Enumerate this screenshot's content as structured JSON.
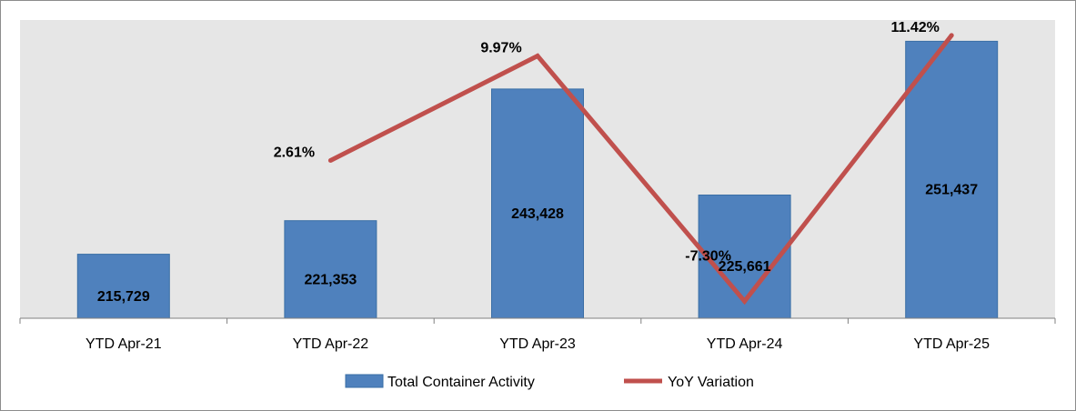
{
  "chart_data": {
    "type": "bar",
    "title": "",
    "xlabel": "",
    "ylabel": "",
    "categories": [
      "YTD Apr-21",
      "YTD Apr-22",
      "YTD Apr-23",
      "YTD Apr-24",
      "YTD Apr-25"
    ],
    "series": [
      {
        "name": "Total Container Activity",
        "type": "bar",
        "values": [
          215729,
          221353,
          243428,
          225661,
          251437
        ],
        "labels": [
          "215,729",
          "221,353",
          "243,428",
          "225,661",
          "251,437"
        ],
        "color": "#4f81bd"
      },
      {
        "name": "YoY Variation",
        "type": "line",
        "values": [
          null,
          2.61,
          9.97,
          -7.3,
          11.42
        ],
        "labels": [
          "",
          "2.61%",
          "9.97%",
          "-7.30%",
          "11.42%"
        ],
        "color": "#c0504d"
      }
    ],
    "bar_axis_range": [
      205000,
      255000
    ],
    "line_axis_range": [
      -8.5,
      12.5
    ],
    "grid": false,
    "plot_background": "#e6e6e6",
    "legend_position": "bottom"
  }
}
